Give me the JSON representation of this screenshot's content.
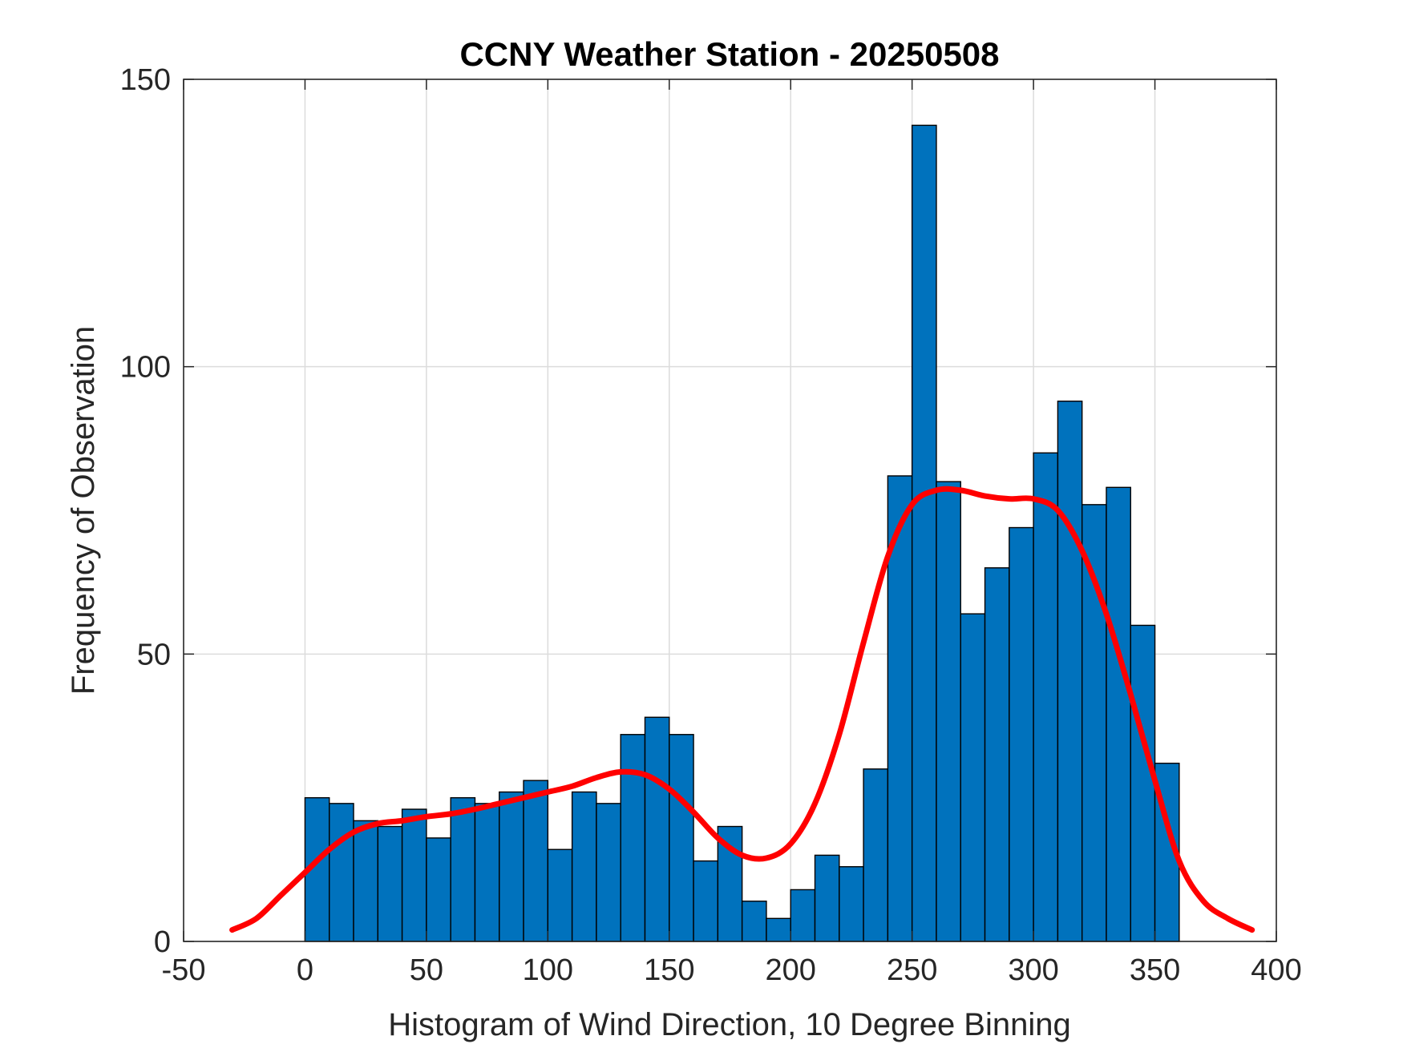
{
  "chart_data": {
    "type": "bar",
    "title": "CCNY Weather Station - 20250508",
    "xlabel": "Histogram of Wind Direction, 10 Degree Binning",
    "ylabel": "Frequency of Observation",
    "xlim": [
      -50,
      400
    ],
    "ylim": [
      0,
      150
    ],
    "xticks": [
      -50,
      0,
      50,
      100,
      150,
      200,
      250,
      300,
      350,
      400
    ],
    "yticks": [
      0,
      50,
      100,
      150
    ],
    "grid": true,
    "bin_width": 10,
    "bin_start": 0,
    "bar_color": "#0072BD",
    "bar_edge_color": "#000000",
    "curve_color": "#FF0000",
    "values": [
      25,
      24,
      21,
      20,
      23,
      18,
      25,
      24,
      26,
      28,
      16,
      26,
      24,
      36,
      39,
      36,
      14,
      20,
      7,
      4,
      9,
      15,
      13,
      30,
      81,
      142,
      80,
      57,
      65,
      72,
      85,
      94,
      76,
      79,
      55,
      31
    ],
    "density_curve": {
      "x": [
        -30,
        -20,
        -10,
        0,
        10,
        20,
        30,
        40,
        50,
        60,
        70,
        80,
        90,
        100,
        110,
        120,
        130,
        140,
        150,
        160,
        170,
        180,
        190,
        200,
        210,
        220,
        230,
        240,
        250,
        260,
        270,
        280,
        290,
        300,
        310,
        320,
        330,
        340,
        350,
        360,
        370,
        380,
        390
      ],
      "y": [
        2,
        4,
        8,
        12,
        16,
        19,
        20.5,
        21,
        21.7,
        22.2,
        23,
        24,
        25,
        26,
        27,
        28.5,
        29.5,
        29,
        26.5,
        22.5,
        18,
        15,
        14.5,
        17,
        24,
        36,
        52,
        67,
        76,
        78.5,
        78.5,
        77.5,
        77,
        77,
        75,
        68,
        57,
        43,
        28,
        14,
        7,
        4,
        2
      ]
    }
  }
}
